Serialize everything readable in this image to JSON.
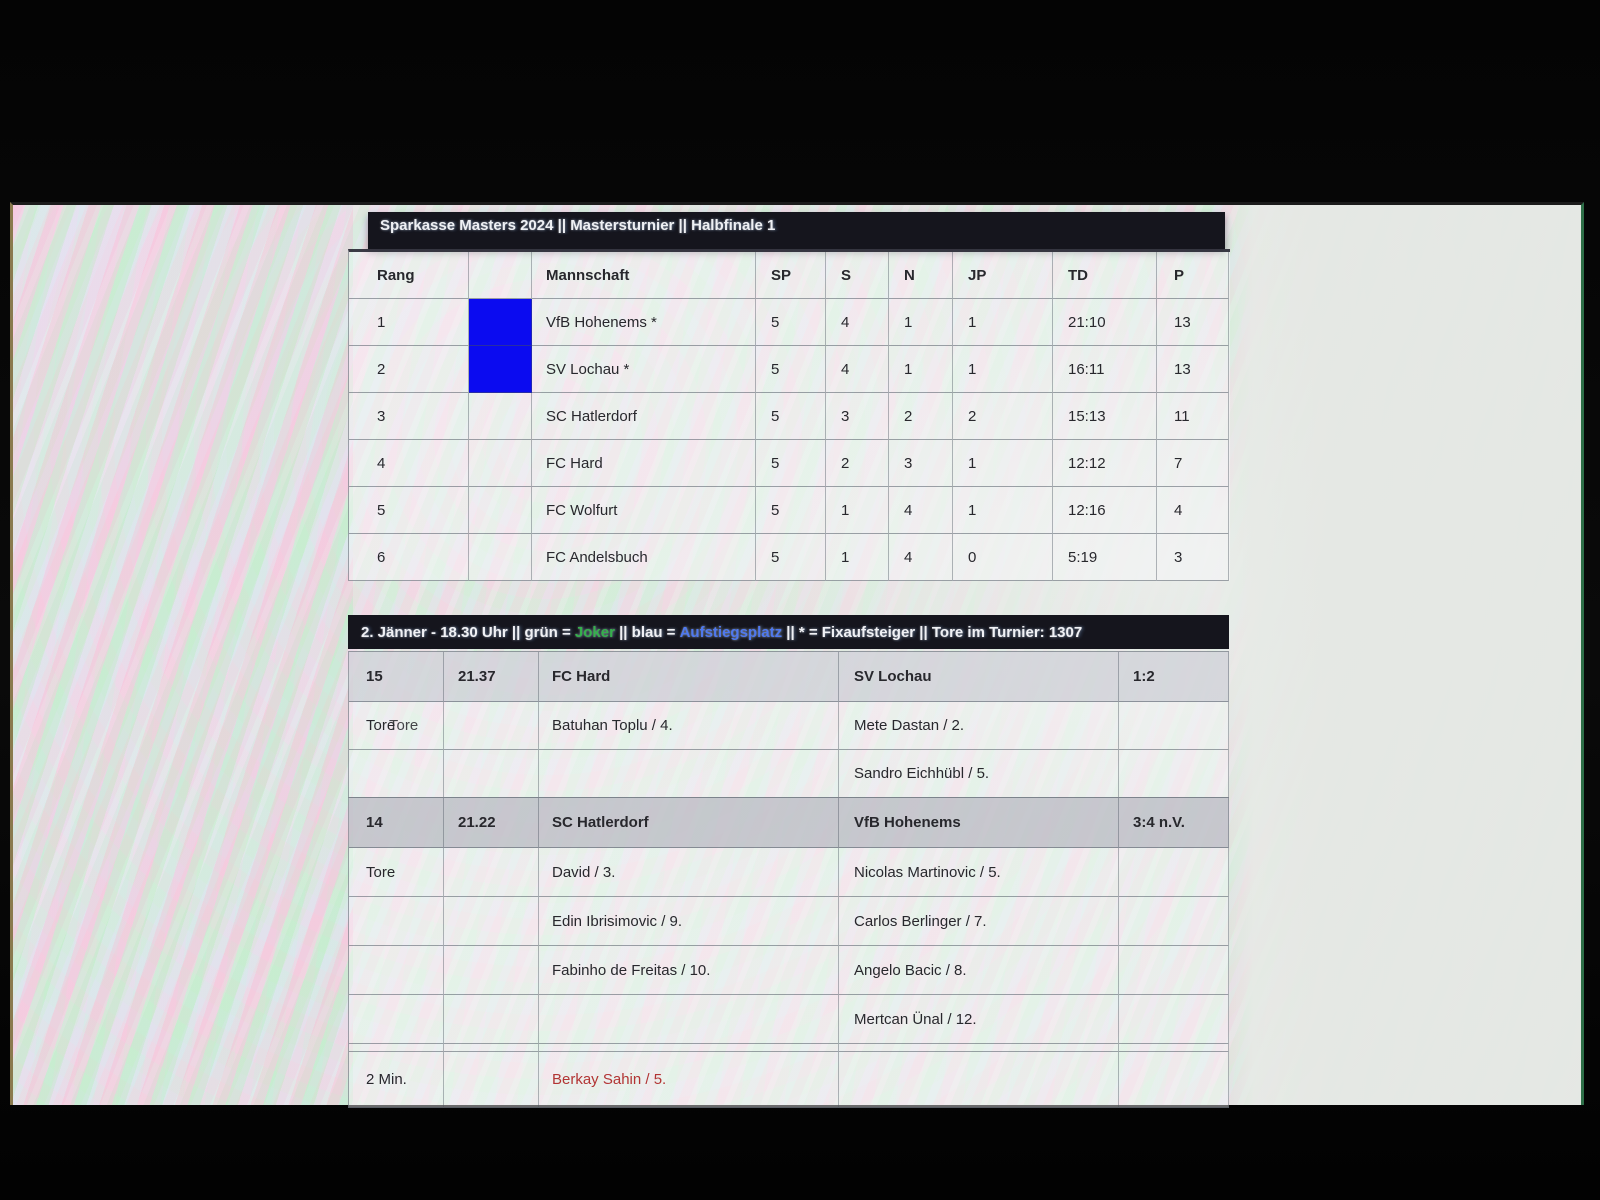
{
  "window": {
    "title": "Sparkasse Masters 2024 || Mastersturnier || Halbfinale 1"
  },
  "standings": {
    "columns": [
      "Rang",
      "",
      "Mannschaft",
      "SP",
      "S",
      "N",
      "JP",
      "TD",
      "P"
    ],
    "rows": [
      {
        "rang": "1",
        "marker": "blue",
        "team": "VfB Hohenems *",
        "sp": "5",
        "s": "4",
        "n": "1",
        "jp": "1",
        "td": "21:10",
        "p": "13"
      },
      {
        "rang": "2",
        "marker": "blue",
        "team": "SV Lochau *",
        "sp": "5",
        "s": "4",
        "n": "1",
        "jp": "1",
        "td": "16:11",
        "p": "13"
      },
      {
        "rang": "3",
        "marker": "none",
        "team": "SC Hatlerdorf",
        "sp": "5",
        "s": "3",
        "n": "2",
        "jp": "2",
        "td": "15:13",
        "p": "11"
      },
      {
        "rang": "4",
        "marker": "none",
        "team": "FC Hard",
        "sp": "5",
        "s": "2",
        "n": "3",
        "jp": "1",
        "td": "12:12",
        "p": "7"
      },
      {
        "rang": "5",
        "marker": "none",
        "team": "FC Wolfurt",
        "sp": "5",
        "s": "1",
        "n": "4",
        "jp": "1",
        "td": "12:16",
        "p": "4"
      },
      {
        "rang": "6",
        "marker": "none",
        "team": "FC Andelsbuch",
        "sp": "5",
        "s": "1",
        "n": "4",
        "jp": "0",
        "td": "5:19",
        "p": "3"
      }
    ]
  },
  "legend": {
    "segments": [
      {
        "text": "2. Jänner - 18.30 Uhr || grün = ",
        "color": "#f0f1f5"
      },
      {
        "text": "Joker",
        "color": "#35b04c"
      },
      {
        "text": " || blau = ",
        "color": "#f0f1f5"
      },
      {
        "text": "Aufstiegsplatz",
        "color": "#4f79ef"
      },
      {
        "text": " || * = Fixaufsteiger || Tore im Turnier: 1307",
        "color": "#f0f1f5"
      }
    ]
  },
  "matches": [
    {
      "nr": "15",
      "time": "21.37",
      "home": "FC Hard",
      "away": "SV Lochau",
      "score": "1:2",
      "rows": [
        {
          "label": "Tore",
          "label_ghost": true,
          "home": "Batuhan Toplu / 4.",
          "away": "Mete Dastan / 2."
        },
        {
          "label": "",
          "home": "",
          "away": "Sandro Eichhübl / 5."
        }
      ]
    },
    {
      "nr": "14",
      "time": "21.22",
      "home": "SC Hatlerdorf",
      "away": "VfB Hohenems",
      "score": "3:4 n.V.",
      "rows": [
        {
          "label": "Tore",
          "home": "David / 3.",
          "away": "Nicolas Martinovic / 5."
        },
        {
          "label": "",
          "home": "Edin Ibrisimovic / 9.",
          "away": "Carlos Berlinger / 7."
        },
        {
          "label": "",
          "home": "Fabinho de Freitas / 10.",
          "away": "Angelo Bacic / 8."
        },
        {
          "label": "",
          "home": "",
          "away": "Mertcan Ünal / 12."
        },
        {
          "thin": true
        },
        {
          "label": "2 Min.",
          "home": "Berkay Sahin / 5.",
          "home_red": true,
          "away": ""
        }
      ]
    }
  ],
  "colors": {
    "marker_blue": "#0b0bf0",
    "joker_green": "#35b04c",
    "aufstieg_blue": "#4f79ef",
    "penalty_red": "#b23434",
    "bar_bg": "#15151d"
  }
}
